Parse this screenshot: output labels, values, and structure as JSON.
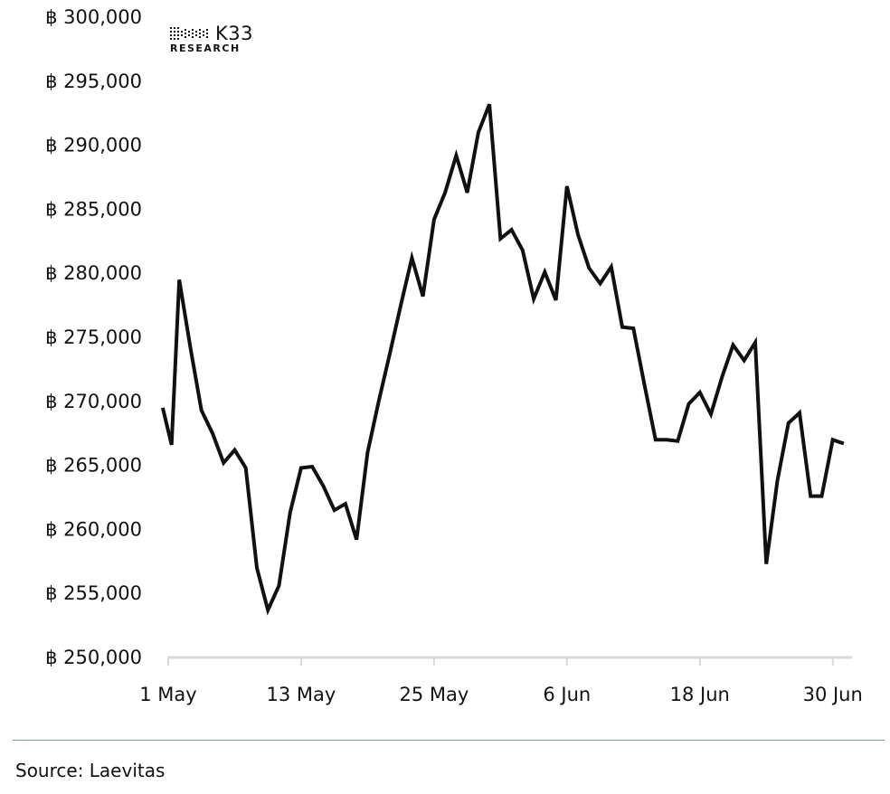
{
  "chart_data": {
    "type": "line",
    "x_tick_labels": [
      "1 May",
      "13 May",
      "25 May",
      "6 Jun",
      "18 Jun",
      "30 Jun"
    ],
    "x_tick_days": [
      0,
      12,
      24,
      36,
      48,
      60
    ],
    "y_tick_labels": [
      "฿ 250,000",
      "฿ 255,000",
      "฿ 260,000",
      "฿ 265,000",
      "฿ 270,000",
      "฿ 275,000",
      "฿ 280,000",
      "฿ 285,000",
      "฿ 290,000",
      "฿ 295,000",
      "฿ 300,000"
    ],
    "ylim": [
      250000,
      300000
    ],
    "grid": false,
    "series": [
      {
        "x": [
          "2024-05-01",
          "2024-05-01",
          "2024-05-02",
          "2024-05-03",
          "2024-05-04",
          "2024-05-05",
          "2024-05-06",
          "2024-05-07",
          "2024-05-08",
          "2024-05-09",
          "2024-05-10",
          "2024-05-11",
          "2024-05-12",
          "2024-05-13",
          "2024-05-14",
          "2024-05-15",
          "2024-05-16",
          "2024-05-17",
          "2024-05-18",
          "2024-05-19",
          "2024-05-20",
          "2024-05-21",
          "2024-05-22",
          "2024-05-23",
          "2024-05-24",
          "2024-05-25",
          "2024-05-26",
          "2024-05-27",
          "2024-05-28",
          "2024-05-29",
          "2024-05-30",
          "2024-05-31",
          "2024-06-01",
          "2024-06-02",
          "2024-06-03",
          "2024-06-04",
          "2024-06-05",
          "2024-06-06",
          "2024-06-07",
          "2024-06-08",
          "2024-06-09",
          "2024-06-10",
          "2024-06-11",
          "2024-06-12",
          "2024-06-13",
          "2024-06-14",
          "2024-06-15",
          "2024-06-16",
          "2024-06-17",
          "2024-06-18",
          "2024-06-19",
          "2024-06-20",
          "2024-06-21",
          "2024-06-22",
          "2024-06-23",
          "2024-06-24",
          "2024-06-25",
          "2024-06-26",
          "2024-06-27",
          "2024-06-28",
          "2024-06-29",
          "2024-06-30",
          "2024-07-01"
        ],
        "y": [
          269500,
          266600,
          279500,
          274200,
          269300,
          267500,
          265200,
          266200,
          264800,
          257000,
          253700,
          255600,
          261300,
          264800,
          264900,
          263400,
          261500,
          262000,
          259200,
          266000,
          270000,
          273700,
          277500,
          281200,
          278200,
          284200,
          286300,
          289200,
          286300,
          291000,
          293200,
          282700,
          283400,
          281800,
          278000,
          280100,
          277900,
          286800,
          283000,
          280400,
          279200,
          280500,
          275800,
          275700,
          271300,
          267000,
          267000,
          266900,
          269800,
          270700,
          269000,
          271900,
          274400,
          273200,
          274600,
          257300,
          263800,
          268300,
          269100,
          262600,
          262600,
          267000,
          266700
        ]
      }
    ],
    "source_note": "Source: Laevitas",
    "logo_text": "K33",
    "logo_subtext": "RESEARCH",
    "line_color": "#111111",
    "axis_color": "#d9d9d9"
  }
}
